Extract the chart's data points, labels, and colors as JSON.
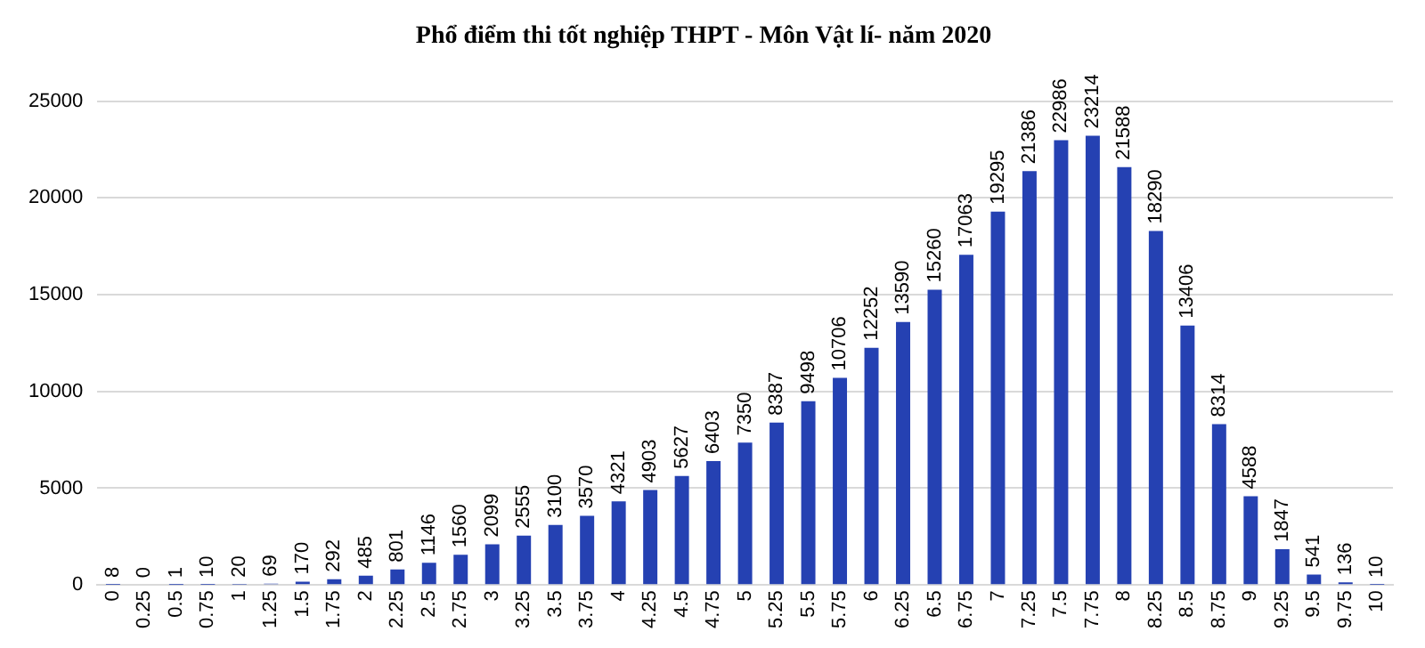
{
  "chart_data": {
    "type": "bar",
    "title": "Phổ điểm thi tốt nghiệp THPT - Môn Vật lí- năm 2020",
    "categories": [
      "0",
      "0.25",
      "0.5",
      "0.75",
      "1",
      "1.25",
      "1.5",
      "1.75",
      "2",
      "2.25",
      "2.5",
      "2.75",
      "3",
      "3.25",
      "3.5",
      "3.75",
      "4",
      "4.25",
      "4.5",
      "4.75",
      "5",
      "5.25",
      "5.5",
      "5.75",
      "6",
      "6.25",
      "6.5",
      "6.75",
      "7",
      "7.25",
      "7.5",
      "7.75",
      "8",
      "8.25",
      "8.5",
      "8.75",
      "9",
      "9.25",
      "9.5",
      "9.75",
      "10"
    ],
    "values": [
      8,
      0,
      1,
      10,
      20,
      69,
      170,
      292,
      485,
      801,
      1146,
      1560,
      2099,
      2555,
      3100,
      3570,
      4321,
      4903,
      5627,
      6403,
      7350,
      8387,
      9498,
      10706,
      12252,
      13590,
      15260,
      17063,
      19295,
      21386,
      22986,
      23214,
      21588,
      18290,
      13406,
      8314,
      4588,
      1847,
      541,
      136,
      10
    ],
    "color": "#2541b2",
    "ylim": [
      0,
      25000
    ],
    "yticks": [
      0,
      5000,
      10000,
      15000,
      20000,
      25000
    ],
    "grid": "y",
    "data_labels": true
  }
}
